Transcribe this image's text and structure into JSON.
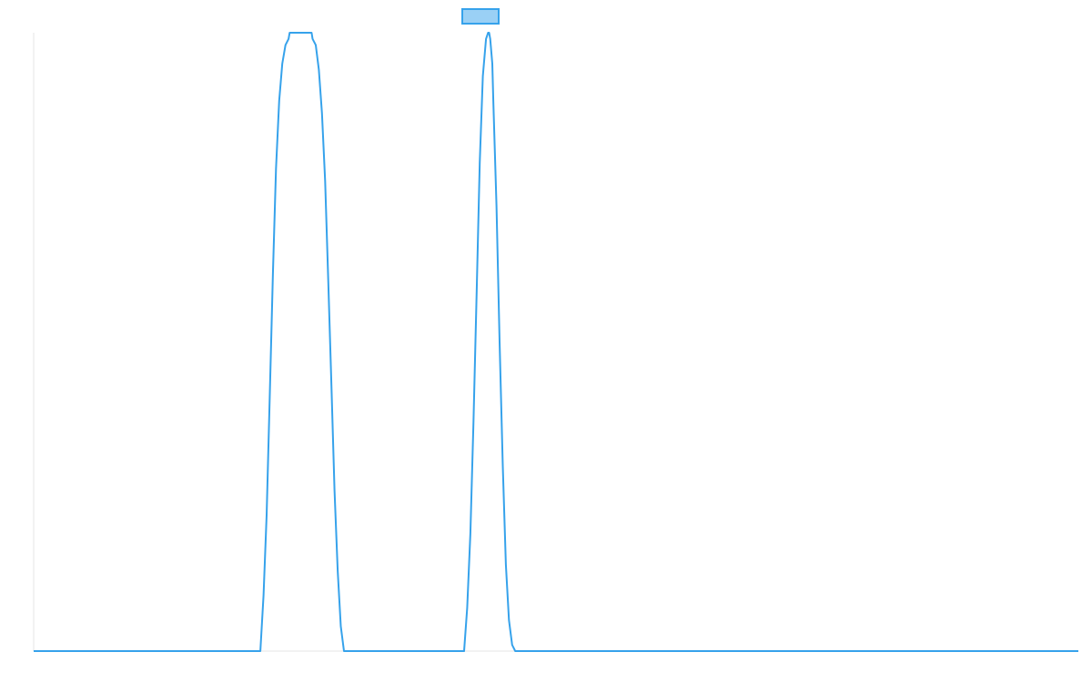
{
  "chart_data": {
    "type": "line",
    "title": "",
    "xlabel": "",
    "ylabel": "",
    "xlim": [
      0,
      100
    ],
    "ylim": [
      0,
      1
    ],
    "grid": false,
    "legend": {
      "position": "top-center",
      "entries": [
        ""
      ]
    },
    "colors": {
      "line": "#36a2eb",
      "legend_fill": "#9ad0f5",
      "axis": "#e5e5e5"
    },
    "series": [
      {
        "x": [
          0,
          21.7,
          22.0,
          22.3,
          22.6,
          22.9,
          23.2,
          23.5,
          23.8,
          24.1,
          24.4,
          24.5,
          24.7,
          25.0,
          26.4,
          26.6,
          26.7,
          27.0,
          27.3,
          27.6,
          27.9,
          28.2,
          28.5,
          28.8,
          29.1,
          29.4,
          29.7,
          41.2,
          41.5,
          41.8,
          42.1,
          42.4,
          42.7,
          43.0,
          43.3,
          43.5,
          43.6,
          43.7,
          43.9,
          44.0,
          44.3,
          44.6,
          44.9,
          45.2,
          45.5,
          45.8,
          46.1,
          100
        ],
        "y": [
          0,
          0,
          0.09,
          0.22,
          0.41,
          0.61,
          0.78,
          0.89,
          0.95,
          0.98,
          0.99,
          1,
          1,
          1,
          1,
          1,
          0.99,
          0.98,
          0.94,
          0.87,
          0.76,
          0.6,
          0.43,
          0.26,
          0.13,
          0.04,
          0,
          0,
          0.07,
          0.19,
          0.37,
          0.58,
          0.79,
          0.93,
          0.99,
          1,
          1,
          0.99,
          0.95,
          0.89,
          0.72,
          0.5,
          0.3,
          0.14,
          0.05,
          0.01,
          0,
          0
        ]
      }
    ]
  }
}
